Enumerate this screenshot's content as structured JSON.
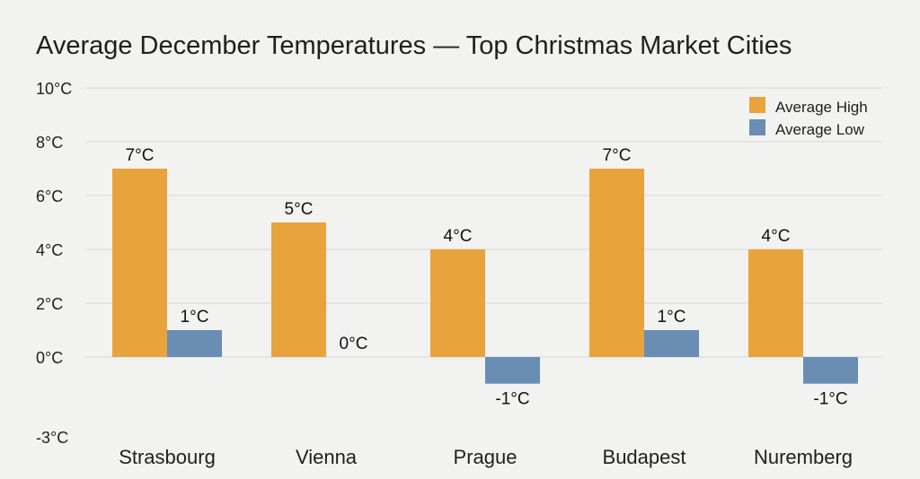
{
  "chart_data": {
    "type": "bar",
    "title": "Average December Temperatures — Top Christmas Market Cities",
    "categories": [
      "Strasbourg",
      "Vienna",
      "Prague",
      "Budapest",
      "Nuremberg"
    ],
    "series": [
      {
        "name": "Average High",
        "values": [
          7,
          5,
          4,
          7,
          4
        ],
        "color": "#e8a33d"
      },
      {
        "name": "Average Low",
        "values": [
          1,
          0,
          -1,
          1,
          -1
        ],
        "color": "#6a8db3"
      }
    ],
    "data_labels": [
      [
        "7°C",
        "5°C",
        "4°C",
        "7°C",
        "4°C"
      ],
      [
        "1°C",
        "0°C",
        "-1°C",
        "1°C",
        "-1°C"
      ]
    ],
    "y_ticks": [
      {
        "value": 10,
        "label": "10°C"
      },
      {
        "value": 8,
        "label": "8°C"
      },
      {
        "value": 6,
        "label": "6°C"
      },
      {
        "value": 4,
        "label": "4°C"
      },
      {
        "value": 2,
        "label": "2°C"
      },
      {
        "value": 0,
        "label": "0°C"
      },
      {
        "value": -3,
        "label": "-3°C"
      }
    ],
    "ylim": [
      -3,
      10
    ],
    "xlabel": "",
    "ylabel": "",
    "grid": true,
    "legend_position": "top-right"
  }
}
